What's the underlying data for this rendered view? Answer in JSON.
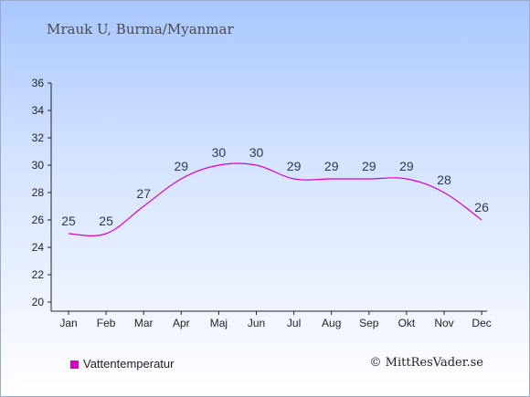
{
  "title": "Mrauk U, Burma/Myanmar",
  "legend_label": "Vattentemperatur",
  "credit": "© MittResVader.se",
  "colors": {
    "series": "#d600c6",
    "axis": "#222222"
  },
  "chart_data": {
    "type": "line",
    "categories": [
      "Jan",
      "Feb",
      "Mar",
      "Apr",
      "Maj",
      "Jun",
      "Jul",
      "Aug",
      "Sep",
      "Okt",
      "Nov",
      "Dec"
    ],
    "series": [
      {
        "name": "Vattentemperatur",
        "values": [
          25,
          25,
          27,
          29,
          30,
          30,
          29,
          29,
          29,
          29,
          28,
          26
        ]
      }
    ],
    "ylim": [
      20,
      36
    ],
    "yticks": [
      20,
      22,
      24,
      26,
      28,
      30,
      32,
      34,
      36
    ],
    "xlabel": "",
    "ylabel": "",
    "grid": false,
    "legend": "bottom-left"
  }
}
